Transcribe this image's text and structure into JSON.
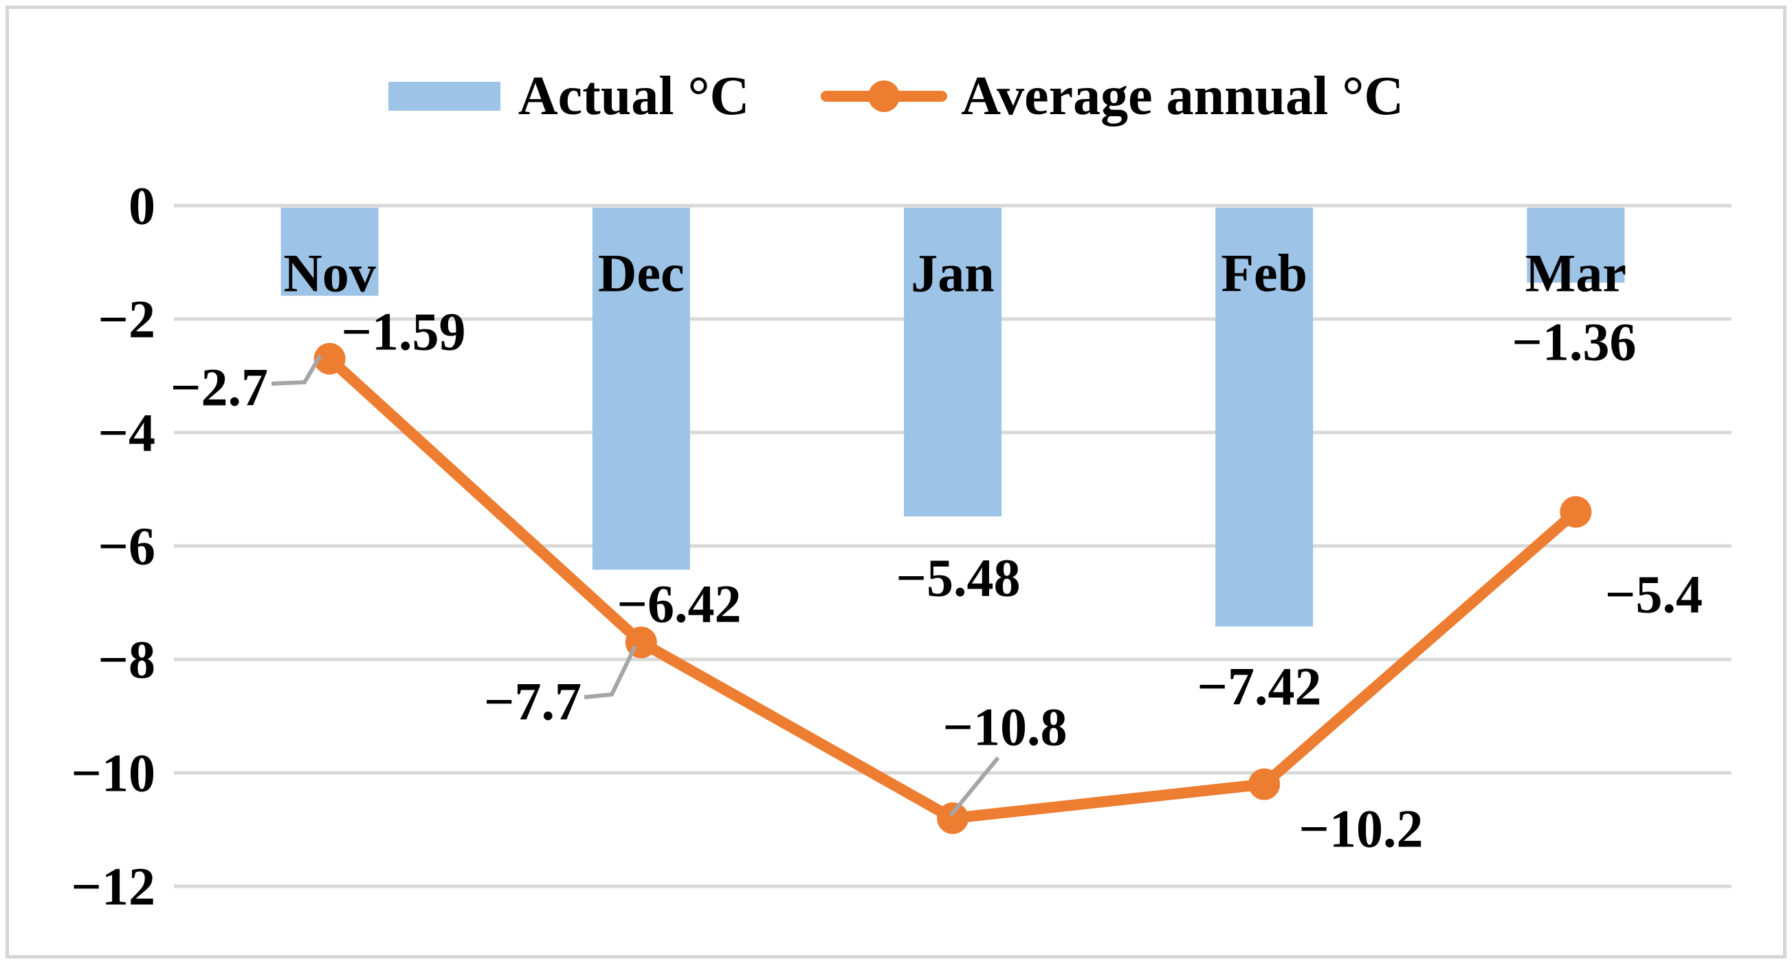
{
  "legend": {
    "actual_label": "Actual °C",
    "average_label": "Average annual °C"
  },
  "colors": {
    "bar": "#9DC3E6",
    "line": "#ED7D31",
    "gridline": "#D9D9D9",
    "leader": "#A6A6A6",
    "text": "#000000",
    "background": "#FFFFFF",
    "frame_border": "#D6D6D6"
  },
  "chart_data": {
    "type": "bar",
    "subtype": "combo-bar-and-line",
    "title": "",
    "xlabel": "",
    "ylabel": "",
    "categories": [
      "Nov",
      "Dec",
      "Jan",
      "Feb",
      "Mar"
    ],
    "series": [
      {
        "name": "Actual °C",
        "type": "bar",
        "color": "#9DC3E6",
        "values": [
          -1.59,
          -6.42,
          -5.48,
          -7.42,
          -1.36
        ],
        "labels": [
          "−1.59",
          "−6.42",
          "−5.48",
          "−7.42",
          "−1.36"
        ]
      },
      {
        "name": "Average annual °C",
        "type": "line",
        "color": "#ED7D31",
        "values": [
          -2.7,
          -7.7,
          -10.8,
          -10.2,
          -5.4
        ],
        "labels": [
          "−2.7",
          "−7.7",
          "−10.8",
          "−10.2",
          "−5.4"
        ]
      }
    ],
    "ylim": [
      0,
      -12
    ],
    "yticks": [
      0,
      -2,
      -4,
      -6,
      -8,
      -10,
      -12
    ],
    "ytick_labels": [
      "0",
      "−2",
      "−4",
      "−6",
      "−8",
      "−10",
      "−12"
    ],
    "grid": true,
    "legend_position": "top-center"
  }
}
